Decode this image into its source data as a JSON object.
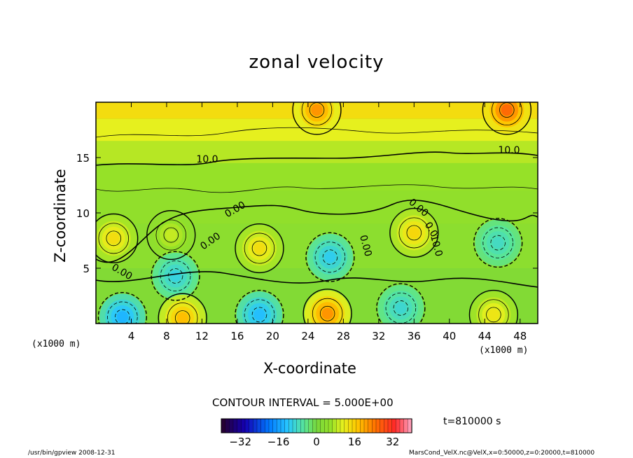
{
  "chart_data": {
    "type": "heatmap",
    "title": "zonal velocity",
    "xlabel": "X-coordinate",
    "ylabel": "Z-coordinate",
    "x_unit": "(x1000 m)",
    "y_unit": "(x1000 m)",
    "xlim": [
      0,
      50
    ],
    "ylim": [
      0,
      20
    ],
    "x_ticks": [
      4,
      8,
      12,
      16,
      20,
      24,
      28,
      32,
      36,
      40,
      44,
      48
    ],
    "y_ticks": [
      5,
      10,
      15
    ],
    "contour_interval_text": "CONTOUR INTERVAL = 5.000E+00",
    "contour_labels": [
      "10.0",
      "10.0",
      "0.00",
      "0.00",
      "0.00",
      "0.00",
      "0.00",
      "0.0",
      "10.0"
    ],
    "time_text": "t=810000 s",
    "colorbar": {
      "min": -40,
      "max": 40,
      "ticks": [
        -32,
        -16,
        0,
        16,
        32
      ]
    },
    "features": [
      {
        "x": 2.0,
        "z": 7.7,
        "v": 14
      },
      {
        "x": 8.5,
        "z": 8.0,
        "v": 9
      },
      {
        "x": 18.5,
        "z": 6.8,
        "v": 14
      },
      {
        "x": 36.0,
        "z": 8.2,
        "v": 15
      },
      {
        "x": 9.0,
        "z": 4.3,
        "v": -10
      },
      {
        "x": 26.5,
        "z": 6.0,
        "v": -11
      },
      {
        "x": 45.5,
        "z": 7.3,
        "v": -8
      },
      {
        "x": 3.0,
        "z": 0.6,
        "v": -14
      },
      {
        "x": 18.5,
        "z": 0.8,
        "v": -13
      },
      {
        "x": 34.5,
        "z": 1.4,
        "v": -9
      },
      {
        "x": 9.8,
        "z": 0.5,
        "v": 18
      },
      {
        "x": 26.2,
        "z": 0.9,
        "v": 22
      },
      {
        "x": 45.0,
        "z": 0.8,
        "v": 13
      },
      {
        "x": 25.0,
        "z": 19.3,
        "v": 22
      },
      {
        "x": 46.5,
        "z": 19.3,
        "v": 26
      }
    ]
  },
  "footer": {
    "left": "/usr/bin/gpview   2008-12-31",
    "right": "MarsCond_VelX.nc@VelX,x=0:50000,z=0:20000,t=810000"
  }
}
